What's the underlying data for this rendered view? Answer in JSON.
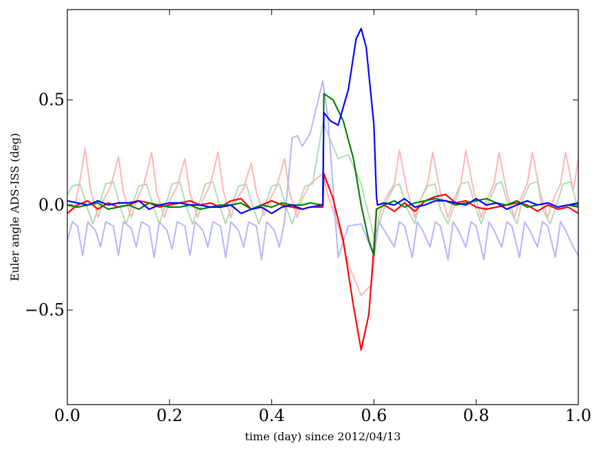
{
  "chart_data": {
    "type": "line",
    "xlabel": "time (day) since 2012/04/13",
    "ylabel": "Euler angle ADS-ISS (deg)",
    "xlim": [
      0.0,
      1.0
    ],
    "ylim": [
      -0.95,
      0.93
    ],
    "grid": false,
    "x_ticks": [
      {
        "value": 0.0,
        "label": "0.0"
      },
      {
        "value": 0.2,
        "label": "0.2"
      },
      {
        "value": 0.4,
        "label": "0.4"
      },
      {
        "value": 0.6,
        "label": "0.6"
      },
      {
        "value": 0.8,
        "label": "0.8"
      },
      {
        "value": 1.0,
        "label": "1.0"
      }
    ],
    "y_ticks": [
      {
        "value": -0.5,
        "label": "−0.5"
      },
      {
        "value": 0.0,
        "label": "0.0"
      },
      {
        "value": 0.5,
        "label": "0.5"
      }
    ],
    "colors": {
      "red": "#ff0000",
      "green": "#008000",
      "blue": "#0000ff",
      "red_faded": "#ffb3b3",
      "green_faded": "#b3d9b3",
      "blue_faded": "#b3b3ff"
    },
    "series": [
      {
        "color_key": "red_faded",
        "x": [
          0,
          0.015,
          0.025,
          0.035,
          0.045,
          0.06,
          0.07,
          0.085,
          0.1,
          0.11,
          0.125,
          0.135,
          0.15,
          0.165,
          0.175,
          0.19,
          0.2,
          0.215,
          0.23,
          0.24,
          0.255,
          0.265,
          0.28,
          0.295,
          0.305,
          0.32,
          0.33,
          0.345,
          0.36,
          0.37,
          0.385,
          0.395,
          0.41,
          0.425,
          0.435,
          0.45,
          0.46,
          0.475,
          0.5,
          0.51,
          0.53,
          0.55,
          0.575,
          0.595,
          0.61,
          0.62,
          0.64,
          0.65,
          0.665,
          0.68,
          0.69,
          0.705,
          0.715,
          0.73,
          0.745,
          0.755,
          0.77,
          0.78,
          0.795,
          0.81,
          0.82,
          0.835,
          0.845,
          0.86,
          0.875,
          0.885,
          0.9,
          0.91,
          0.925,
          0.94,
          0.95,
          0.965,
          0.975,
          0.99,
          1.0
        ],
        "y": [
          -0.04,
          0.0,
          0.12,
          0.27,
          0.08,
          -0.06,
          0.02,
          0.09,
          0.23,
          0.06,
          -0.06,
          0.02,
          0.1,
          0.25,
          0.06,
          -0.06,
          0.02,
          0.09,
          0.22,
          0.06,
          -0.06,
          0.02,
          0.1,
          0.25,
          0.07,
          -0.06,
          0.02,
          0.08,
          0.2,
          0.06,
          -0.05,
          0.02,
          0.09,
          0.22,
          0.06,
          -0.06,
          0.03,
          0.1,
          0.15,
          0.05,
          -0.1,
          -0.28,
          -0.43,
          -0.38,
          -0.05,
          0.02,
          0.1,
          0.26,
          0.07,
          -0.06,
          0.02,
          0.1,
          0.25,
          0.06,
          -0.06,
          0.02,
          0.1,
          0.26,
          0.07,
          -0.06,
          0.02,
          0.1,
          0.25,
          0.06,
          -0.06,
          0.02,
          0.1,
          0.25,
          0.06,
          -0.06,
          0.02,
          0.1,
          0.25,
          0.07,
          0.22
        ]
      },
      {
        "color_key": "green_faded",
        "x": [
          0,
          0.01,
          0.025,
          0.04,
          0.05,
          0.065,
          0.075,
          0.09,
          0.105,
          0.115,
          0.13,
          0.14,
          0.155,
          0.17,
          0.18,
          0.195,
          0.205,
          0.22,
          0.235,
          0.245,
          0.26,
          0.27,
          0.285,
          0.3,
          0.31,
          0.325,
          0.335,
          0.35,
          0.365,
          0.375,
          0.39,
          0.4,
          0.415,
          0.43,
          0.44,
          0.455,
          0.465,
          0.48,
          0.5,
          0.51,
          0.53,
          0.55,
          0.575,
          0.6,
          0.61,
          0.625,
          0.64,
          0.65,
          0.665,
          0.68,
          0.69,
          0.705,
          0.72,
          0.73,
          0.745,
          0.76,
          0.77,
          0.785,
          0.8,
          0.81,
          0.825,
          0.84,
          0.85,
          0.865,
          0.88,
          0.89,
          0.905,
          0.92,
          0.93,
          0.945,
          0.96,
          0.97,
          0.985,
          1.0
        ],
        "y": [
          0.05,
          0.09,
          0.1,
          -0.02,
          -0.09,
          0.02,
          0.1,
          0.11,
          -0.02,
          -0.09,
          0.02,
          0.09,
          0.1,
          -0.02,
          -0.09,
          0.02,
          0.1,
          0.11,
          -0.02,
          -0.09,
          0.02,
          0.1,
          0.11,
          -0.02,
          -0.09,
          0.02,
          0.09,
          0.1,
          -0.02,
          -0.09,
          0.02,
          0.09,
          0.1,
          -0.02,
          -0.09,
          0.02,
          0.09,
          0.1,
          0.39,
          0.34,
          0.22,
          0.24,
          0.1,
          -0.15,
          -0.09,
          0.02,
          0.09,
          0.1,
          -0.02,
          -0.09,
          0.02,
          0.09,
          0.1,
          -0.02,
          -0.09,
          0.02,
          0.1,
          0.11,
          -0.02,
          -0.09,
          0.02,
          0.1,
          0.11,
          -0.02,
          -0.09,
          0.02,
          0.1,
          0.11,
          -0.02,
          -0.09,
          0.02,
          0.1,
          0.11,
          -0.02
        ]
      },
      {
        "color_key": "blue_faded",
        "x": [
          0,
          0.01,
          0.02,
          0.03,
          0.04,
          0.055,
          0.065,
          0.075,
          0.09,
          0.1,
          0.11,
          0.125,
          0.135,
          0.145,
          0.16,
          0.17,
          0.18,
          0.195,
          0.205,
          0.215,
          0.23,
          0.24,
          0.25,
          0.265,
          0.275,
          0.285,
          0.3,
          0.31,
          0.32,
          0.335,
          0.345,
          0.355,
          0.37,
          0.38,
          0.39,
          0.405,
          0.415,
          0.425,
          0.44,
          0.45,
          0.46,
          0.475,
          0.5,
          0.51,
          0.53,
          0.55,
          0.575,
          0.6,
          0.61,
          0.62,
          0.64,
          0.65,
          0.66,
          0.675,
          0.685,
          0.695,
          0.71,
          0.72,
          0.73,
          0.745,
          0.755,
          0.765,
          0.78,
          0.79,
          0.8,
          0.815,
          0.825,
          0.835,
          0.85,
          0.86,
          0.87,
          0.885,
          0.895,
          0.905,
          0.92,
          0.93,
          0.94,
          0.955,
          0.965,
          0.975,
          0.99,
          1.0
        ],
        "y": [
          -0.17,
          -0.08,
          -0.1,
          -0.24,
          -0.08,
          -0.12,
          -0.2,
          -0.08,
          -0.1,
          -0.24,
          -0.08,
          -0.11,
          -0.2,
          -0.08,
          -0.1,
          -0.25,
          -0.08,
          -0.12,
          -0.21,
          -0.08,
          -0.1,
          -0.24,
          -0.08,
          -0.12,
          -0.2,
          -0.08,
          -0.1,
          -0.25,
          -0.08,
          -0.12,
          -0.2,
          -0.08,
          -0.1,
          -0.26,
          -0.08,
          -0.12,
          -0.2,
          -0.08,
          0.32,
          0.33,
          0.28,
          0.34,
          0.59,
          0.42,
          -0.25,
          -0.1,
          -0.09,
          -0.24,
          -0.08,
          -0.12,
          -0.2,
          -0.08,
          -0.1,
          -0.25,
          -0.08,
          -0.12,
          -0.2,
          -0.08,
          -0.1,
          -0.26,
          -0.08,
          -0.12,
          -0.2,
          -0.08,
          -0.1,
          -0.26,
          -0.08,
          -0.12,
          -0.2,
          -0.08,
          -0.1,
          -0.25,
          -0.08,
          -0.12,
          -0.2,
          -0.08,
          -0.1,
          -0.25,
          -0.08,
          -0.12,
          -0.2,
          -0.24
        ]
      },
      {
        "color_key": "red",
        "x": [
          0,
          0.02,
          0.04,
          0.06,
          0.08,
          0.1,
          0.12,
          0.14,
          0.16,
          0.18,
          0.2,
          0.22,
          0.24,
          0.26,
          0.28,
          0.3,
          0.32,
          0.34,
          0.36,
          0.38,
          0.4,
          0.42,
          0.44,
          0.46,
          0.475,
          0.5,
          0.502,
          0.52,
          0.54,
          0.56,
          0.575,
          0.59,
          0.6,
          0.605,
          0.62,
          0.64,
          0.66,
          0.68,
          0.7,
          0.72,
          0.74,
          0.76,
          0.78,
          0.8,
          0.82,
          0.84,
          0.86,
          0.88,
          0.9,
          0.92,
          0.94,
          0.96,
          0.98,
          1.0
        ],
        "y": [
          -0.04,
          0.0,
          0.02,
          -0.02,
          0.01,
          -0.01,
          0.0,
          0.02,
          0.01,
          -0.01,
          0.0,
          0.01,
          0.02,
          0.0,
          0.01,
          -0.01,
          0.02,
          0.03,
          -0.02,
          0.0,
          0.02,
          0.0,
          -0.01,
          -0.02,
          -0.01,
          -0.01,
          0.15,
          0.03,
          -0.17,
          -0.48,
          -0.69,
          -0.52,
          -0.2,
          -0.02,
          0.0,
          -0.03,
          0.01,
          -0.03,
          0.02,
          0.04,
          0.05,
          0.01,
          0.02,
          -0.01,
          -0.02,
          -0.01,
          0.0,
          0.01,
          0.0,
          -0.03,
          0.0,
          -0.02,
          -0.01,
          -0.04
        ]
      },
      {
        "color_key": "green",
        "x": [
          0,
          0.02,
          0.04,
          0.06,
          0.08,
          0.1,
          0.12,
          0.14,
          0.16,
          0.18,
          0.2,
          0.22,
          0.24,
          0.26,
          0.28,
          0.3,
          0.32,
          0.34,
          0.36,
          0.38,
          0.4,
          0.42,
          0.44,
          0.46,
          0.475,
          0.5,
          0.502,
          0.52,
          0.54,
          0.56,
          0.575,
          0.59,
          0.6,
          0.605,
          0.62,
          0.64,
          0.66,
          0.68,
          0.7,
          0.72,
          0.74,
          0.76,
          0.78,
          0.8,
          0.82,
          0.84,
          0.86,
          0.88,
          0.9,
          0.92,
          0.94,
          0.96,
          0.98,
          1.0
        ],
        "y": [
          0.0,
          -0.01,
          0.0,
          0.01,
          -0.02,
          -0.01,
          0.0,
          -0.02,
          0.01,
          0.0,
          -0.01,
          -0.01,
          0.0,
          -0.02,
          -0.01,
          0.0,
          0.0,
          0.01,
          -0.02,
          0.0,
          -0.01,
          0.01,
          0.0,
          0.0,
          0.01,
          0.0,
          0.53,
          0.5,
          0.4,
          0.22,
          0.0,
          -0.17,
          -0.24,
          -0.02,
          0.0,
          0.02,
          -0.01,
          0.01,
          0.02,
          0.03,
          0.02,
          0.0,
          0.01,
          0.02,
          0.03,
          0.01,
          0.0,
          0.02,
          -0.01,
          0.0,
          0.01,
          -0.01,
          0.0,
          -0.01
        ]
      },
      {
        "color_key": "blue",
        "x": [
          0,
          0.02,
          0.04,
          0.06,
          0.08,
          0.1,
          0.12,
          0.14,
          0.16,
          0.18,
          0.2,
          0.22,
          0.24,
          0.26,
          0.28,
          0.3,
          0.32,
          0.34,
          0.36,
          0.38,
          0.4,
          0.42,
          0.44,
          0.46,
          0.475,
          0.5,
          0.502,
          0.515,
          0.53,
          0.55,
          0.565,
          0.575,
          0.585,
          0.6,
          0.605,
          0.607,
          0.62,
          0.64,
          0.66,
          0.68,
          0.7,
          0.72,
          0.74,
          0.76,
          0.78,
          0.8,
          0.82,
          0.84,
          0.86,
          0.88,
          0.9,
          0.92,
          0.94,
          0.96,
          0.98,
          1.0
        ],
        "y": [
          0.02,
          0.01,
          0.0,
          0.02,
          0.0,
          0.01,
          0.01,
          0.02,
          -0.02,
          0.0,
          0.01,
          0.01,
          0.0,
          0.0,
          -0.01,
          -0.01,
          0.0,
          -0.04,
          -0.02,
          -0.01,
          -0.04,
          -0.01,
          0.0,
          -0.02,
          -0.01,
          0.0,
          0.44,
          0.4,
          0.38,
          0.55,
          0.79,
          0.84,
          0.75,
          0.38,
          0.04,
          0.0,
          0.01,
          0.0,
          0.03,
          -0.01,
          0.0,
          0.02,
          0.02,
          0.01,
          0.0,
          0.03,
          0.0,
          0.01,
          -0.02,
          0.0,
          0.02,
          0.0,
          0.01,
          -0.01,
          0.0,
          0.01
        ]
      }
    ]
  }
}
